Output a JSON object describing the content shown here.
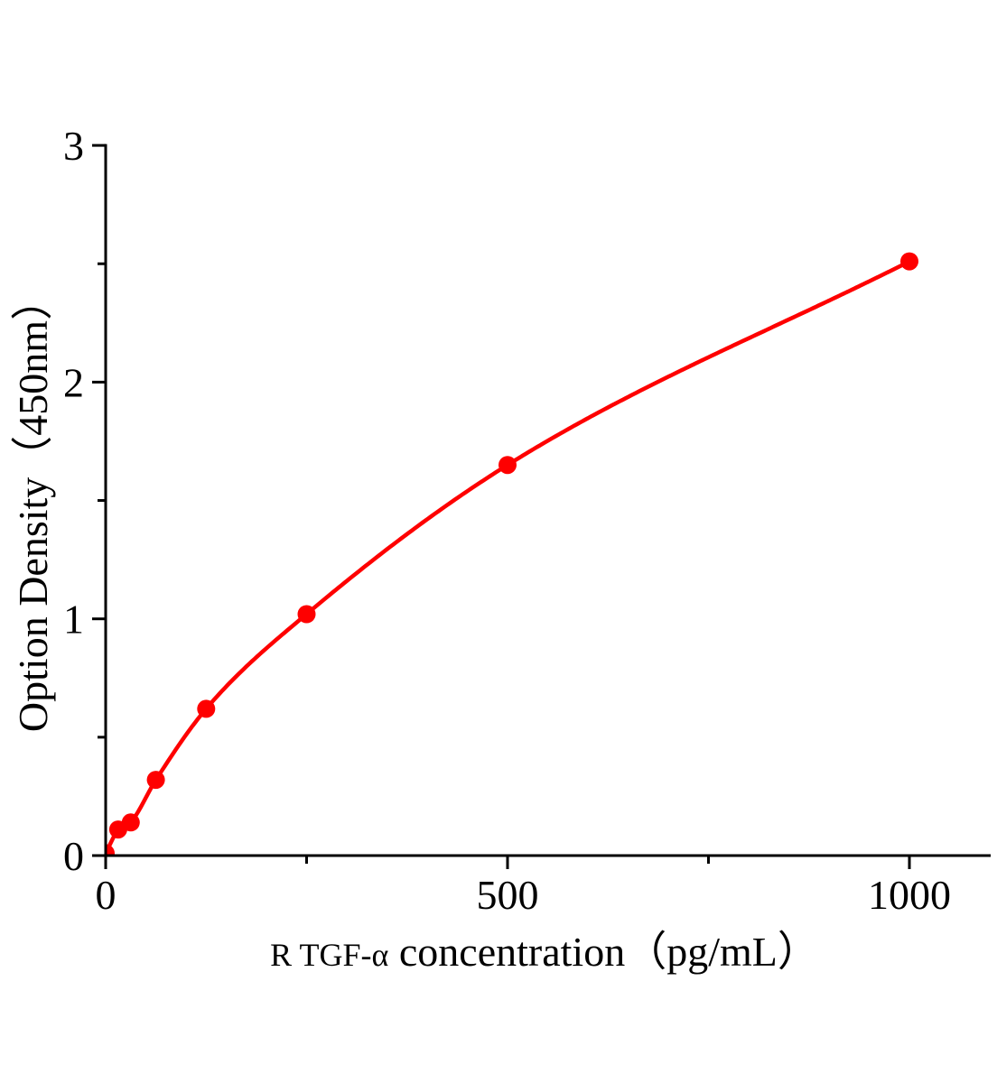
{
  "figure": {
    "background": "#ffffff",
    "axis_color": "#000000",
    "text_color": "#000000"
  },
  "chart_data": {
    "type": "line",
    "title": "",
    "xlabel_prefix": "R TGF-α",
    "xlabel_main": "concentration（pg/mL）",
    "ylabel": "Option Density（450nm）",
    "x": [
      0,
      15.6,
      31.2,
      62.5,
      125,
      250,
      500,
      1000
    ],
    "y": [
      0.01,
      0.11,
      0.14,
      0.32,
      0.62,
      1.02,
      1.65,
      2.51
    ],
    "xlim": [
      0,
      1100
    ],
    "ylim": [
      0,
      3
    ],
    "x_ticks_major": [
      0,
      500,
      1000
    ],
    "x_tick_labels": [
      "0",
      "500",
      "1000"
    ],
    "x_ticks_minor": [
      250,
      750
    ],
    "y_ticks_major": [
      0,
      1,
      2,
      3
    ],
    "y_tick_labels": [
      "0",
      "1",
      "2",
      "3"
    ],
    "y_ticks_minor": [
      0.5,
      1.5,
      2.5
    ],
    "line_color": "#fe0000",
    "marker_color": "#fe0000",
    "marker": "circle",
    "grid": false,
    "legend": false
  }
}
